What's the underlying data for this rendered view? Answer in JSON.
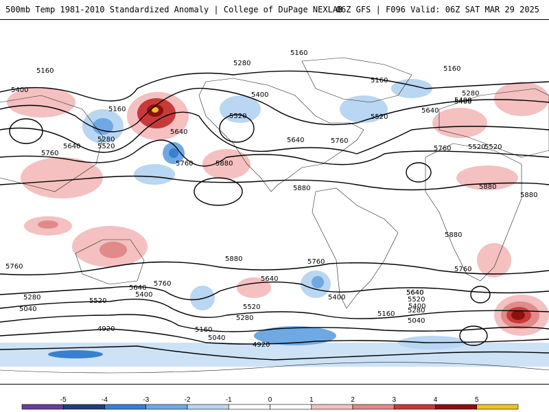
{
  "header": {
    "title": "500mb Temp 1981-2010 Standardized Anomaly | College of DuPage NEXLAB",
    "run_info": "06Z GFS | F096 Valid: 06Z SAT MAR 29 2025"
  },
  "contour_labels": [
    "5160",
    "5280",
    "5400",
    "5520",
    "5640",
    "5760",
    "5880",
    "5160",
    "5160",
    "5280",
    "5400",
    "5520",
    "5520",
    "5640",
    "5640",
    "5760",
    "5760",
    "5880",
    "5880",
    "5400",
    "5160",
    "5280",
    "5400",
    "5520",
    "5640",
    "5760",
    "5880",
    "5760",
    "5640",
    "5520",
    "5400",
    "5280",
    "5040",
    "4920",
    "5640",
    "5760",
    "5520",
    "5400",
    "5280",
    "5160",
    "5040",
    "4920",
    "5640",
    "5760",
    "5640",
    "5520",
    "5400",
    "5280",
    "5160",
    "5040",
    "5760",
    "5880",
    "5880",
    "5520",
    "5160"
  ],
  "colorbar": {
    "ticks": [
      "-5",
      "-4",
      "-3",
      "-2",
      "-1",
      "0",
      "1",
      "2",
      "3",
      "4",
      "5"
    ],
    "colors": [
      "#6a3d9a",
      "#1f3f7a",
      "#3a7fd0",
      "#6fa9e3",
      "#b9d6f2",
      "#ffffff",
      "#ffffff",
      "#f4c0c0",
      "#e08a8a",
      "#c83a3a",
      "#8c1010",
      "#f0c020"
    ]
  }
}
